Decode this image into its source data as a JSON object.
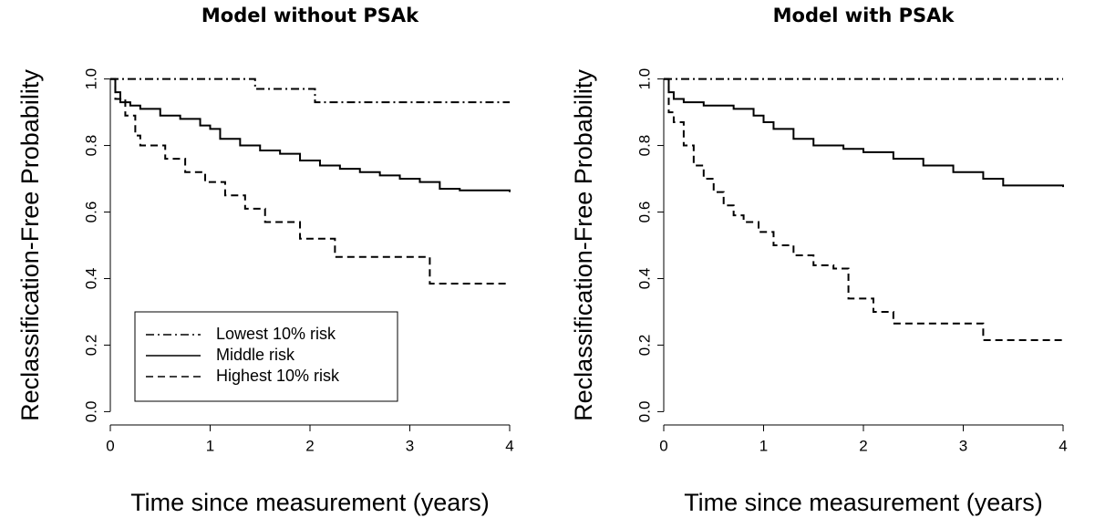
{
  "chart_data": [
    {
      "type": "step",
      "title": "Model without PSAk",
      "xlabel": "Time since measurement (years)",
      "ylabel": "Reclassification-Free Probability",
      "xlim": [
        0,
        4
      ],
      "ylim": [
        -0.04,
        1.04
      ],
      "xticks": [
        0,
        1,
        2,
        3,
        4
      ],
      "yticks": [
        {
          "value": 0,
          "label": "0.0"
        },
        0.2,
        0.4,
        0.6,
        0.8,
        {
          "value": 1,
          "label": "1.0"
        }
      ],
      "legend": "bottom-left",
      "series": [
        {
          "name": "Lowest 10% risk",
          "color": "#000000",
          "dash": "dashdot",
          "x": [
            0,
            1.45,
            2.05,
            4
          ],
          "values": [
            1,
            0.97,
            0.93,
            0.93
          ]
        },
        {
          "name": "Middle risk",
          "color": "#000000",
          "dash": "solid",
          "x": [
            0,
            0.05,
            0.1,
            0.2,
            0.3,
            0.5,
            0.7,
            0.9,
            1.0,
            1.1,
            1.3,
            1.5,
            1.7,
            1.9,
            2.1,
            2.3,
            2.5,
            2.7,
            2.9,
            3.1,
            3.3,
            3.5,
            4
          ],
          "values": [
            1,
            0.96,
            0.93,
            0.92,
            0.91,
            0.89,
            0.88,
            0.86,
            0.85,
            0.82,
            0.8,
            0.785,
            0.775,
            0.755,
            0.74,
            0.73,
            0.72,
            0.71,
            0.7,
            0.69,
            0.67,
            0.665,
            0.66
          ]
        },
        {
          "name": "Highest 10% risk",
          "color": "#000000",
          "dash": "dashed",
          "x": [
            0,
            0.05,
            0.15,
            0.25,
            0.3,
            0.55,
            0.75,
            0.95,
            1.15,
            1.35,
            1.55,
            1.9,
            2.25,
            3.2,
            4
          ],
          "values": [
            1,
            0.94,
            0.89,
            0.83,
            0.8,
            0.76,
            0.72,
            0.69,
            0.65,
            0.61,
            0.57,
            0.52,
            0.465,
            0.385,
            0.385
          ]
        }
      ]
    },
    {
      "type": "step",
      "title": "Model with PSAk",
      "xlabel": "Time since measurement (years)",
      "ylabel": "Reclassification-Free Probability",
      "xlim": [
        0,
        4
      ],
      "ylim": [
        -0.04,
        1.04
      ],
      "xticks": [
        0,
        1,
        2,
        3,
        4
      ],
      "yticks": [
        {
          "value": 0,
          "label": "0.0"
        },
        0.2,
        0.4,
        0.6,
        0.8,
        {
          "value": 1,
          "label": "1.0"
        }
      ],
      "series": [
        {
          "color": "#000000",
          "dash": "dashdot",
          "x": [
            0,
            4
          ],
          "values": [
            1,
            1
          ]
        },
        {
          "color": "#000000",
          "dash": "solid",
          "x": [
            0,
            0.05,
            0.1,
            0.2,
            0.4,
            0.7,
            0.9,
            1.0,
            1.1,
            1.3,
            1.5,
            1.8,
            2.0,
            2.3,
            2.6,
            2.9,
            3.2,
            3.4,
            4
          ],
          "values": [
            1,
            0.96,
            0.94,
            0.93,
            0.92,
            0.91,
            0.89,
            0.87,
            0.85,
            0.82,
            0.8,
            0.79,
            0.78,
            0.76,
            0.74,
            0.72,
            0.7,
            0.68,
            0.675
          ]
        },
        {
          "color": "#000000",
          "dash": "dashed",
          "x": [
            0,
            0.05,
            0.1,
            0.2,
            0.3,
            0.4,
            0.5,
            0.6,
            0.7,
            0.8,
            0.95,
            1.1,
            1.3,
            1.5,
            1.7,
            1.85,
            2.1,
            2.3,
            3.2,
            4
          ],
          "values": [
            1,
            0.9,
            0.87,
            0.8,
            0.74,
            0.7,
            0.66,
            0.62,
            0.59,
            0.57,
            0.54,
            0.5,
            0.47,
            0.44,
            0.43,
            0.34,
            0.3,
            0.265,
            0.215,
            0.215
          ]
        }
      ]
    }
  ]
}
